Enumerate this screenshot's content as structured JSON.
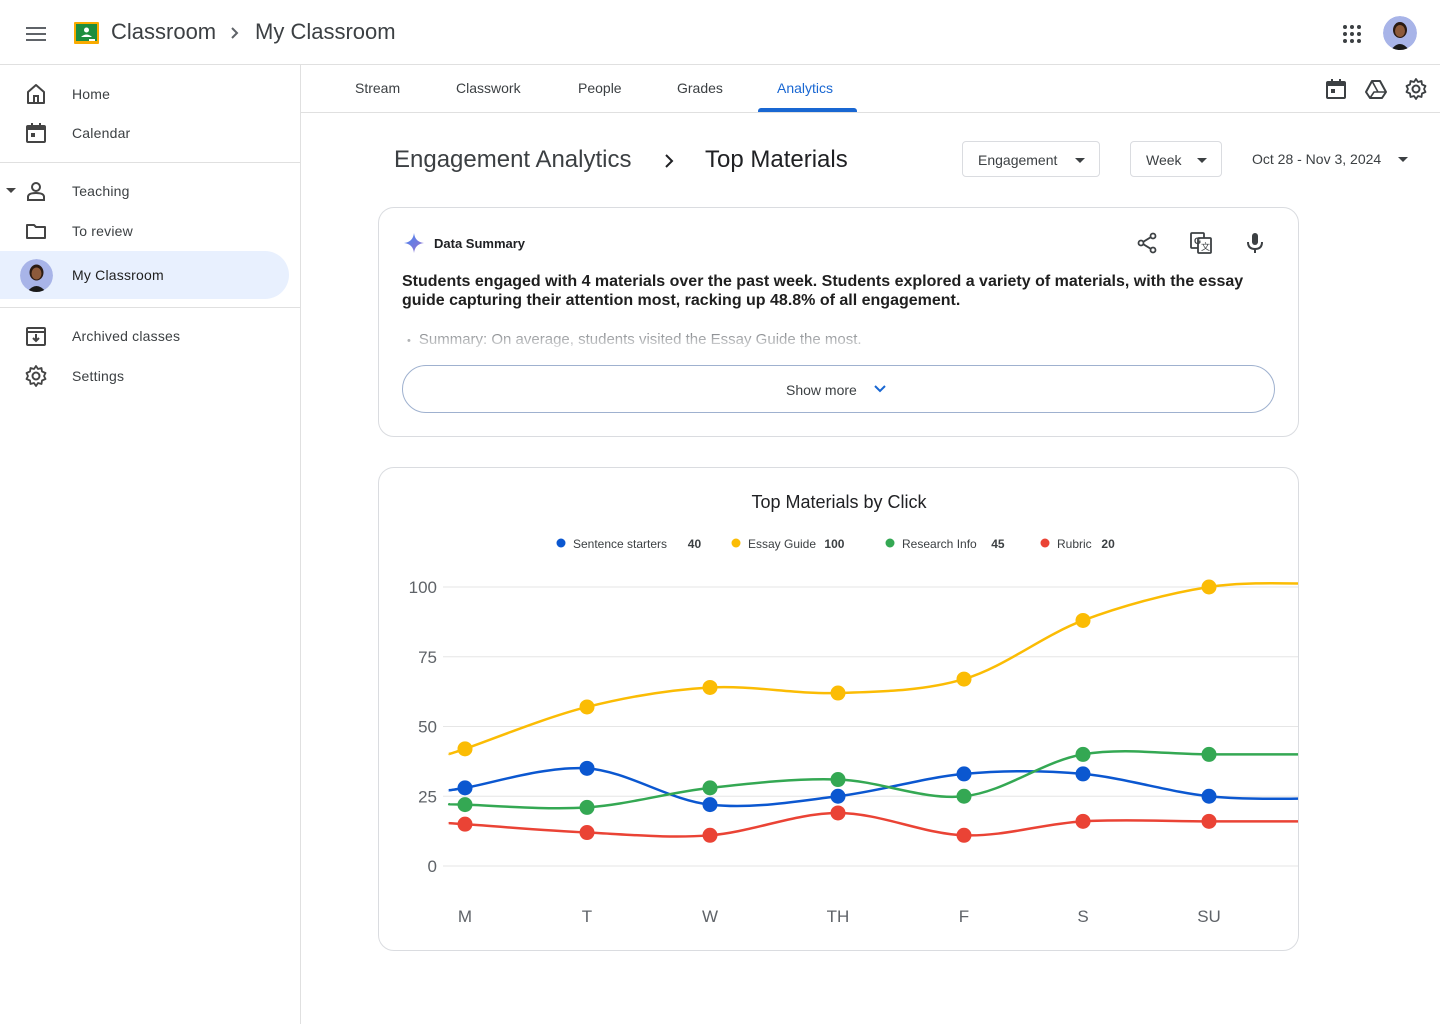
{
  "header": {
    "app_name": "Classroom",
    "class_name": "My Classroom",
    "icons": {
      "menu": "hamburger-icon",
      "apps": "apps-grid-icon",
      "avatar": "user-avatar"
    }
  },
  "sidebar": {
    "items": [
      {
        "label": "Home",
        "icon": "home-icon"
      },
      {
        "label": "Calendar",
        "icon": "calendar-icon"
      },
      {
        "label": "Teaching",
        "icon": "person-icon"
      },
      {
        "label": "To review",
        "icon": "folder-icon"
      },
      {
        "label": "My Classroom",
        "icon": "class-avatar"
      },
      {
        "label": "Archived classes",
        "icon": "archive-icon"
      },
      {
        "label": "Settings",
        "icon": "gear-icon"
      }
    ]
  },
  "tabs": [
    {
      "label": "Stream"
    },
    {
      "label": "Classwork"
    },
    {
      "label": "People"
    },
    {
      "label": "Grades"
    },
    {
      "label": "Analytics",
      "active": true
    }
  ],
  "toolbar_icons": [
    "calendar-icon",
    "drive-icon",
    "gear-icon"
  ],
  "page": {
    "title": "Engagement Analytics",
    "subtitle": "Top Materials",
    "metric_dropdown": "Engagement",
    "period_dropdown": "Week",
    "date_range": "Oct 28 - Nov 3, 2024"
  },
  "summary": {
    "label": "Data Summary",
    "text": "Students engaged with 4 materials over the past week. Students explored a variety of materials, with the essay guide capturing their attention most, racking up 48.8% of all engagement.",
    "bullet": "Summary: On average, students visited the Essay Guide the most.",
    "show_more": "Show more",
    "actions": [
      "share-icon",
      "translate-icon",
      "mic-icon"
    ]
  },
  "chart_data": {
    "type": "line",
    "title": "Top Materials by Click",
    "categories": [
      "M",
      "T",
      "W",
      "TH",
      "F",
      "S",
      "SU"
    ],
    "ylim": [
      0,
      100
    ],
    "yticks": [
      0,
      25,
      50,
      75,
      100
    ],
    "grid": true,
    "legend_position": "top",
    "series": [
      {
        "name": "Sentence starters",
        "total": "40",
        "color": "#0b57d0",
        "values": [
          28,
          35,
          22,
          25,
          33,
          33,
          25
        ]
      },
      {
        "name": "Essay Guide",
        "total": "100",
        "color": "#fbbc04",
        "values": [
          42,
          57,
          64,
          62,
          67,
          88,
          100
        ]
      },
      {
        "name": "Research Info",
        "total": "45",
        "color": "#34a853",
        "values": [
          22,
          21,
          28,
          31,
          25,
          40,
          40
        ]
      },
      {
        "name": "Rubric",
        "total": "20",
        "color": "#ea4335",
        "values": [
          15,
          12,
          11,
          19,
          11,
          16,
          16
        ]
      }
    ]
  }
}
